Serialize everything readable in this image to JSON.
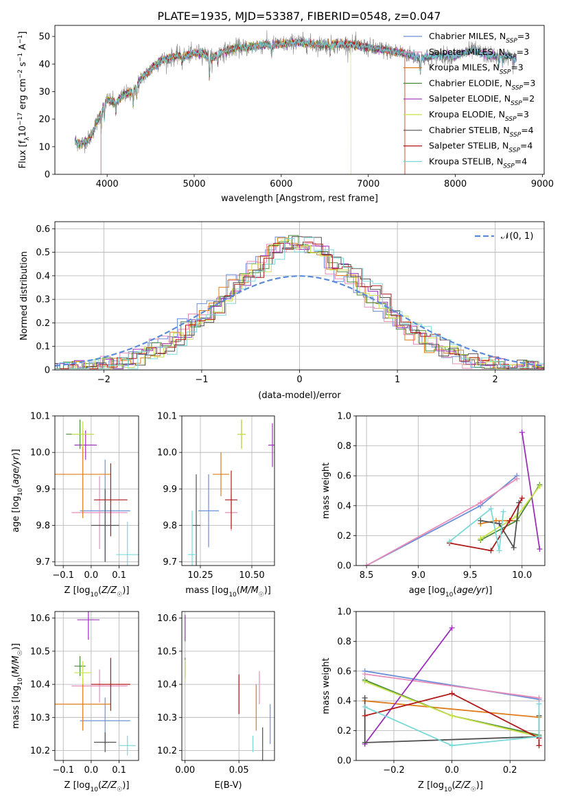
{
  "figure": {
    "title": "PLATE=1935, MJD=53387, FIBERID=0548, z=0.047"
  },
  "models": [
    {
      "name": "Chabrier MILES",
      "nssp": 3,
      "color": "#6a8fd8"
    },
    {
      "name": "Salpeter MILES",
      "nssp": 3,
      "color": "#e88bb8"
    },
    {
      "name": "Kroupa MILES",
      "nssp": 3,
      "color": "#e07b1a"
    },
    {
      "name": "Chabrier ELODIE",
      "nssp": 3,
      "color": "#4a8a3a"
    },
    {
      "name": "Salpeter ELODIE",
      "nssp": 2,
      "color": "#9b30b8"
    },
    {
      "name": "Kroupa ELODIE",
      "nssp": 3,
      "color": "#c8e04a"
    },
    {
      "name": "Chabrier STELIB",
      "nssp": 4,
      "color": "#505050"
    },
    {
      "name": "Salpeter STELIB",
      "nssp": 4,
      "color": "#b01818"
    },
    {
      "name": "Kroupa STELIB",
      "nssp": 4,
      "color": "#7ad8d8"
    }
  ],
  "legend_nssp_prefix": "N",
  "legend_nssp_sub": "SSP",
  "chart_data": [
    {
      "id": "spectrum",
      "type": "line",
      "xlabel": "wavelength [Angstrom, rest frame]",
      "ylabel": "Flux [f",
      "ylabel_full": "Flux [fλ10−17 erg cm−2 s−1 A−1]",
      "xlim": [
        3400,
        9020
      ],
      "ylim": [
        0,
        54
      ],
      "xticks": [
        4000,
        5000,
        6000,
        7000,
        8000,
        9000
      ],
      "yticks": [
        0,
        10,
        20,
        30,
        40,
        50
      ],
      "continuum": [
        [
          3630,
          12
        ],
        [
          3700,
          11
        ],
        [
          3800,
          13
        ],
        [
          3900,
          20
        ],
        [
          3950,
          24
        ],
        [
          4000,
          27
        ],
        [
          4100,
          26
        ],
        [
          4200,
          29
        ],
        [
          4300,
          30
        ],
        [
          4400,
          35
        ],
        [
          4500,
          38
        ],
        [
          4600,
          41
        ],
        [
          4700,
          42
        ],
        [
          4800,
          43
        ],
        [
          4900,
          43
        ],
        [
          5000,
          44
        ],
        [
          5100,
          44
        ],
        [
          5200,
          42
        ],
        [
          5300,
          44
        ],
        [
          5400,
          45
        ],
        [
          5500,
          46
        ],
        [
          5600,
          46
        ],
        [
          5800,
          47
        ],
        [
          6000,
          47
        ],
        [
          6200,
          48
        ],
        [
          6400,
          47
        ],
        [
          6600,
          47
        ],
        [
          6800,
          47
        ],
        [
          7000,
          46
        ],
        [
          7200,
          45
        ],
        [
          7400,
          44
        ],
        [
          7600,
          42
        ],
        [
          7800,
          43
        ],
        [
          8000,
          43
        ],
        [
          8200,
          45
        ],
        [
          8400,
          43
        ],
        [
          8600,
          43
        ],
        [
          8700,
          42
        ]
      ],
      "absorptions": [
        [
          3933,
          -6
        ],
        [
          3968,
          -5
        ],
        [
          4101,
          -4
        ],
        [
          4300,
          -5
        ],
        [
          4340,
          -4
        ],
        [
          4861,
          -3
        ],
        [
          5175,
          -7
        ],
        [
          5270,
          -3
        ],
        [
          5890,
          -4
        ],
        [
          6563,
          -3
        ],
        [
          7600,
          -5
        ],
        [
          8500,
          -3
        ],
        [
          8542,
          -3
        ],
        [
          8662,
          -3
        ]
      ],
      "model_ranges": [
        [
          3630,
          8700
        ],
        [
          3630,
          8700
        ],
        [
          3630,
          7420
        ],
        [
          3630,
          8700
        ],
        [
          3630,
          8700
        ],
        [
          3630,
          6800
        ],
        [
          3630,
          8700
        ],
        [
          3630,
          7420
        ],
        [
          3630,
          8700
        ]
      ]
    },
    {
      "id": "residuals",
      "type": "histogram",
      "xlabel": "(data-model)/error",
      "ylabel": "Normed distribution",
      "xlim": [
        -2.5,
        2.5
      ],
      "ylim": [
        0,
        0.63
      ],
      "xticks": [
        -2,
        -1,
        0,
        1,
        2
      ],
      "yticks": [
        0.0,
        0.1,
        0.2,
        0.3,
        0.4,
        0.5,
        0.6
      ],
      "reference_label": "𝒩(0, 1)",
      "bin_width": 0.1
    },
    {
      "id": "age-vs-Z",
      "type": "scatter",
      "xlabel": "Z [log10(Z/Z☉)]",
      "ylabel": "age  [log10(age/yr)]",
      "xlim": [
        -0.13,
        0.17
      ],
      "ylim": [
        9.69,
        10.1
      ],
      "xticks": [
        -0.1,
        0.0,
        0.1
      ],
      "yticks": [
        9.7,
        9.8,
        9.9,
        10.0,
        10.1
      ],
      "points": [
        {
          "x": 0.05,
          "y": 9.84,
          "xerr": 0.09,
          "yerr": 0.14
        },
        {
          "x": 0.03,
          "y": 9.835,
          "xerr": 0.1,
          "yerr": 0.1
        },
        {
          "x": -0.03,
          "y": 9.94,
          "xerr": 0.1,
          "yerr": 0.12
        },
        {
          "x": -0.04,
          "y": 10.05,
          "xerr": 0.05,
          "yerr": 0.04
        },
        {
          "x": -0.02,
          "y": 10.02,
          "xerr": 0.04,
          "yerr": 0.04
        },
        {
          "x": -0.03,
          "y": 10.05,
          "xerr": 0.04,
          "yerr": 0.035
        },
        {
          "x": 0.05,
          "y": 9.8,
          "xerr": 0.05,
          "yerr": 0.1
        },
        {
          "x": 0.07,
          "y": 9.87,
          "xerr": 0.06,
          "yerr": 0.1
        },
        {
          "x": 0.13,
          "y": 9.72,
          "xerr": 0.04,
          "yerr": 0.09
        }
      ]
    },
    {
      "id": "age-vs-mass",
      "type": "scatter",
      "xlabel": "mass [log10(M/M☉)]",
      "ylabel": "",
      "xlim": [
        10.16,
        10.61
      ],
      "ylim": [
        9.69,
        10.1
      ],
      "xticks": [
        10.25,
        10.5
      ],
      "yticks": [
        9.7,
        9.8,
        9.9,
        10.0,
        10.1
      ],
      "points": [
        {
          "x": 10.29,
          "y": 9.84,
          "xerr": 0.05,
          "yerr": 0.1
        },
        {
          "x": 10.4,
          "y": 9.835,
          "xerr": 0.03,
          "yerr": 0.05
        },
        {
          "x": 10.35,
          "y": 9.94,
          "xerr": 0.04,
          "yerr": 0.06
        },
        {
          "x": 10.45,
          "y": 10.05,
          "xerr": 0.02,
          "yerr": 0.04
        },
        {
          "x": 10.6,
          "y": 10.02,
          "xerr": 0.02,
          "yerr": 0.06
        },
        {
          "x": 10.45,
          "y": 10.05,
          "xerr": 0.02,
          "yerr": 0.04
        },
        {
          "x": 10.23,
          "y": 9.8,
          "xerr": 0.02,
          "yerr": 0.14
        },
        {
          "x": 10.4,
          "y": 9.87,
          "xerr": 0.03,
          "yerr": 0.08
        },
        {
          "x": 10.21,
          "y": 9.72,
          "xerr": 0.02,
          "yerr": 0.12
        }
      ]
    },
    {
      "id": "mass-weight-vs-age",
      "type": "line",
      "xlabel": "age  [log10(age/yr)]",
      "ylabel": "mass weight",
      "xlim": [
        8.4,
        10.22
      ],
      "ylim": [
        0,
        1
      ],
      "xticks": [
        8.5,
        9.0,
        9.5,
        10.0
      ],
      "yticks": [
        0.0,
        0.2,
        0.4,
        0.6,
        0.8,
        1.0
      ],
      "series": [
        {
          "x": [
            8.5,
            9.6,
            9.95
          ],
          "y": [
            0.0,
            0.4,
            0.6
          ]
        },
        {
          "x": [
            8.5,
            9.6,
            9.95
          ],
          "y": [
            0.0,
            0.42,
            0.58
          ]
        },
        {
          "x": [
            9.6,
            9.75,
            9.95
          ],
          "y": [
            0.28,
            0.3,
            0.3
          ]
        },
        {
          "x": [
            9.6,
            9.95,
            10.17
          ],
          "y": [
            0.17,
            0.3,
            0.54
          ]
        },
        {
          "x": [
            10.17,
            10.0
          ],
          "y": [
            0.11,
            0.89
          ]
        },
        {
          "x": [
            9.6,
            9.95,
            10.17
          ],
          "y": [
            0.18,
            0.33,
            0.53
          ]
        },
        {
          "x": [
            9.6,
            9.78,
            9.92,
            9.97
          ],
          "y": [
            0.3,
            0.28,
            0.12,
            0.42
          ]
        },
        {
          "x": [
            9.3,
            9.7,
            9.88,
            10.0
          ],
          "y": [
            0.15,
            0.1,
            0.3,
            0.45
          ]
        },
        {
          "x": [
            9.3,
            9.7,
            9.78,
            9.82
          ],
          "y": [
            0.16,
            0.38,
            0.1,
            0.36
          ]
        }
      ]
    },
    {
      "id": "mass-vs-Z",
      "type": "scatter",
      "xlabel": "Z [log10(Z/Z☉)]",
      "ylabel": "mass [log10(M/M☉)]",
      "xlim": [
        -0.13,
        0.17
      ],
      "ylim": [
        10.17,
        10.62
      ],
      "xticks": [
        -0.1,
        0.0,
        0.1
      ],
      "yticks": [
        10.2,
        10.3,
        10.4,
        10.5,
        10.6
      ],
      "points": [
        {
          "x": 0.05,
          "y": 10.29,
          "xerr": 0.09,
          "yerr": 0.07
        },
        {
          "x": 0.03,
          "y": 10.395,
          "xerr": 0.1,
          "yerr": 0.05
        },
        {
          "x": -0.03,
          "y": 10.34,
          "xerr": 0.1,
          "yerr": 0.08
        },
        {
          "x": -0.04,
          "y": 10.455,
          "xerr": 0.02,
          "yerr": 0.03
        },
        {
          "x": -0.01,
          "y": 10.595,
          "xerr": 0.04,
          "yerr": 0.06
        },
        {
          "x": -0.03,
          "y": 10.435,
          "xerr": 0.03,
          "yerr": 0.035
        },
        {
          "x": 0.05,
          "y": 10.225,
          "xerr": 0.04,
          "yerr": 0.03
        },
        {
          "x": 0.07,
          "y": 10.4,
          "xerr": 0.07,
          "yerr": 0.08
        },
        {
          "x": 0.13,
          "y": 10.215,
          "xerr": 0.03,
          "yerr": 0.03
        }
      ]
    },
    {
      "id": "mass-vs-ebv",
      "type": "scatter",
      "xlabel": "E(B-V)",
      "ylabel": "",
      "xlim": [
        -0.003,
        0.083
      ],
      "ylim": [
        10.17,
        10.62
      ],
      "xticks": [
        0.0,
        0.05
      ],
      "yticks": [
        10.2,
        10.3,
        10.4,
        10.5,
        10.6
      ],
      "points": [
        {
          "x": 0.079,
          "y": 10.28,
          "xerr": 0,
          "yerr": 0.06
        },
        {
          "x": 0.069,
          "y": 10.39,
          "xerr": 0,
          "yerr": 0.05
        },
        {
          "x": 0.066,
          "y": 10.33,
          "xerr": 0,
          "yerr": 0.07
        },
        {
          "x": 0.0,
          "y": 10.45,
          "xerr": 0,
          "yerr": 0.03
        },
        {
          "x": 0.0,
          "y": 10.57,
          "xerr": 0,
          "yerr": 0.04
        },
        {
          "x": 0.0,
          "y": 10.44,
          "xerr": 0,
          "yerr": 0.035
        },
        {
          "x": 0.072,
          "y": 10.22,
          "xerr": 0,
          "yerr": 0.05
        },
        {
          "x": 0.05,
          "y": 10.37,
          "xerr": 0,
          "yerr": 0.06
        },
        {
          "x": 0.063,
          "y": 10.22,
          "xerr": 0,
          "yerr": 0.025
        }
      ]
    },
    {
      "id": "mass-weight-vs-Z",
      "type": "line",
      "xlabel": "Z [log10(Z/Z☉)]",
      "ylabel": "mass weight",
      "xlim": [
        -0.33,
        0.32
      ],
      "ylim": [
        0,
        1
      ],
      "xticks": [
        -0.2,
        0.0,
        0.2
      ],
      "yticks": [
        0.0,
        0.2,
        0.4,
        0.6,
        0.8,
        1.0
      ],
      "series": [
        {
          "x": [
            -0.3,
            0.3
          ],
          "y": [
            0.6,
            0.41
          ]
        },
        {
          "x": [
            -0.3,
            0.3
          ],
          "y": [
            0.58,
            0.42
          ]
        },
        {
          "x": [
            -0.3,
            0.3,
            0.3
          ],
          "y": [
            0.4,
            0.29,
            0.3
          ]
        },
        {
          "x": [
            -0.3,
            0.0,
            0.3
          ],
          "y": [
            0.54,
            0.3,
            0.17
          ]
        },
        {
          "x": [
            -0.3,
            0.0
          ],
          "y": [
            0.11,
            0.89
          ]
        },
        {
          "x": [
            -0.3,
            0.0,
            0.3
          ],
          "y": [
            0.53,
            0.3,
            0.16
          ]
        },
        {
          "x": [
            -0.3,
            -0.3,
            0.3,
            0.3
          ],
          "y": [
            0.42,
            0.12,
            0.16,
            0.3
          ]
        },
        {
          "x": [
            -0.3,
            0.0,
            0.3,
            0.3
          ],
          "y": [
            0.3,
            0.45,
            0.15,
            0.1
          ]
        },
        {
          "x": [
            -0.3,
            0.0,
            0.3,
            0.3
          ],
          "y": [
            0.36,
            0.1,
            0.16,
            0.38
          ]
        }
      ]
    }
  ]
}
